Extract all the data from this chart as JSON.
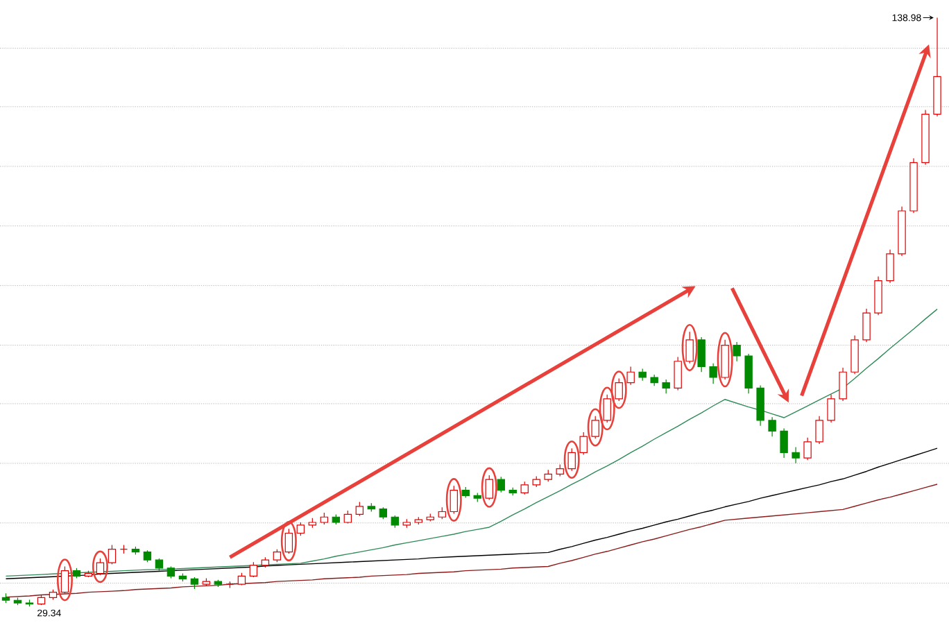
{
  "chart_data": {
    "type": "candlestick",
    "categories": [
      null,
      null,
      null,
      null,
      null,
      null,
      null,
      null,
      null,
      null,
      null,
      null,
      null,
      null,
      null,
      null,
      null,
      null,
      null,
      null,
      null,
      null,
      null,
      null,
      null,
      null,
      null,
      null,
      null,
      null,
      null,
      null,
      null,
      null,
      null,
      null,
      null,
      null,
      null,
      null,
      null,
      null,
      null,
      null,
      null,
      null,
      null,
      null,
      null,
      null,
      null,
      null,
      null,
      null,
      null,
      null,
      null,
      null,
      null,
      null,
      null,
      null,
      null,
      null,
      null,
      null,
      null,
      null,
      null,
      null,
      null,
      null,
      null,
      null,
      null,
      null,
      null,
      null,
      null,
      null
    ],
    "ohlc": [
      [
        31,
        31.8,
        30,
        30.5
      ],
      [
        30.5,
        31,
        29.6,
        30
      ],
      [
        30,
        30.6,
        29.34,
        29.8
      ],
      [
        29.8,
        31.5,
        29.6,
        31
      ],
      [
        31,
        32.5,
        30.6,
        32
      ],
      [
        32,
        36.8,
        31.8,
        36
      ],
      [
        36,
        36.5,
        34.6,
        35
      ],
      [
        35,
        36,
        34.8,
        35.5
      ],
      [
        35.5,
        38.3,
        35.2,
        37.5
      ],
      [
        37.5,
        40.8,
        37.2,
        40
      ],
      [
        40,
        40.8,
        39.2,
        40
      ],
      [
        40,
        40.5,
        39,
        39.5
      ],
      [
        39.5,
        39.8,
        37.6,
        38
      ],
      [
        38,
        38.3,
        36,
        36.5
      ],
      [
        36.5,
        36.8,
        34.6,
        35
      ],
      [
        35,
        35.5,
        34,
        34.5
      ],
      [
        34.5,
        34.8,
        32.6,
        33.5
      ],
      [
        33.5,
        34.6,
        33.2,
        34
      ],
      [
        34,
        34.3,
        33,
        33.5
      ],
      [
        33.5,
        34,
        32.8,
        33.5
      ],
      [
        33.5,
        35.6,
        33.3,
        35
      ],
      [
        35,
        37.6,
        34.8,
        37
      ],
      [
        37,
        38.5,
        36.6,
        38
      ],
      [
        38,
        40,
        37.6,
        39.5
      ],
      [
        39.5,
        43.8,
        39.2,
        43
      ],
      [
        43,
        45,
        42.5,
        44.5
      ],
      [
        44.5,
        45.8,
        44,
        45
      ],
      [
        45,
        46.8,
        44.6,
        46
      ],
      [
        46,
        46.5,
        44.6,
        45
      ],
      [
        45,
        47.2,
        44.8,
        46.5
      ],
      [
        46.5,
        48.8,
        46.2,
        48
      ],
      [
        48,
        48.6,
        47,
        47.5
      ],
      [
        47.5,
        47.8,
        45.6,
        46
      ],
      [
        46,
        46.3,
        44,
        44.5
      ],
      [
        44.5,
        45.6,
        44,
        45
      ],
      [
        45,
        46,
        44.6,
        45.5
      ],
      [
        45.5,
        46.6,
        45.2,
        46
      ],
      [
        46,
        47.8,
        45.6,
        47
      ],
      [
        47,
        51.8,
        46.6,
        51
      ],
      [
        51,
        51.6,
        49.6,
        50
      ],
      [
        50,
        50.5,
        48.8,
        49.5
      ],
      [
        49.5,
        53.8,
        49.2,
        53
      ],
      [
        53,
        53.5,
        50.6,
        51
      ],
      [
        51,
        51.5,
        50,
        50.5
      ],
      [
        50.5,
        52.6,
        50.2,
        52
      ],
      [
        52,
        53.6,
        51.6,
        53
      ],
      [
        53,
        54.8,
        52.6,
        54
      ],
      [
        54,
        55.8,
        53.6,
        55
      ],
      [
        55,
        58.8,
        54.6,
        58
      ],
      [
        58,
        61.8,
        57.6,
        61
      ],
      [
        61,
        64.8,
        60.6,
        64
      ],
      [
        64,
        68.8,
        63.6,
        68
      ],
      [
        68,
        71.8,
        67.6,
        71
      ],
      [
        71,
        74,
        70.6,
        73
      ],
      [
        73,
        73.6,
        71.4,
        72
      ],
      [
        72,
        72.5,
        70.4,
        71
      ],
      [
        71,
        71.6,
        69,
        70
      ],
      [
        70,
        75.8,
        69.6,
        75
      ],
      [
        75,
        80.5,
        74.6,
        79
      ],
      [
        79,
        79.5,
        73,
        74
      ],
      [
        74,
        74.6,
        70.8,
        72
      ],
      [
        72,
        79,
        71.6,
        78
      ],
      [
        78,
        78.6,
        75,
        76
      ],
      [
        76,
        76.4,
        69,
        70
      ],
      [
        70,
        70.5,
        63,
        64
      ],
      [
        64,
        64.6,
        61,
        62
      ],
      [
        62,
        62.5,
        57,
        58
      ],
      [
        58,
        59,
        56,
        57
      ],
      [
        57,
        60.8,
        56.6,
        60
      ],
      [
        60,
        64.8,
        59.6,
        64
      ],
      [
        64,
        68.8,
        63.6,
        68
      ],
      [
        68,
        73.8,
        67.6,
        73
      ],
      [
        73,
        79.8,
        72.6,
        79
      ],
      [
        79,
        84.8,
        78.6,
        84
      ],
      [
        84,
        90.8,
        83.6,
        90
      ],
      [
        90,
        95.8,
        89.6,
        95
      ],
      [
        95,
        103.8,
        94.6,
        103
      ],
      [
        103,
        112.8,
        102.6,
        112
      ],
      [
        112,
        121.8,
        111.6,
        121
      ],
      [
        121,
        138.98,
        120.6,
        128
      ]
    ],
    "series": [
      {
        "type": "line",
        "color": "#8b1a1a",
        "values": [
          31.1,
          31.2,
          31.3,
          31.5,
          31.6,
          31.7,
          31.8,
          32.0,
          32.1,
          32.2,
          32.3,
          32.5,
          32.6,
          32.7,
          32.8,
          33.0,
          33.1,
          33.2,
          33.3,
          33.5,
          33.6,
          33.7,
          33.8,
          34.0,
          34.1,
          34.2,
          34.3,
          34.5,
          34.6,
          34.7,
          34.8,
          35.0,
          35.1,
          35.2,
          35.3,
          35.5,
          35.6,
          35.7,
          35.8,
          36.0,
          36.1,
          36.2,
          36.3,
          36.5,
          36.6,
          36.7,
          36.8,
          37.4,
          37.9,
          38.5,
          39.1,
          39.6,
          40.2,
          40.8,
          41.4,
          41.9,
          42.5,
          43.1,
          43.7,
          44.2,
          44.8,
          45.4,
          45.6,
          45.8,
          46.0,
          46.2,
          46.4,
          46.6,
          46.8,
          47.0,
          47.2,
          47.4,
          48.0,
          48.6,
          49.2,
          49.7,
          50.3,
          50.9,
          51.5,
          52.1
        ]
      },
      {
        "type": "line",
        "color": "#000000",
        "values": [
          34.5,
          34.6,
          34.7,
          34.8,
          34.9,
          35.0,
          35.1,
          35.2,
          35.4,
          35.5,
          35.6,
          35.7,
          35.8,
          35.9,
          36.0,
          36.1,
          36.2,
          36.3,
          36.4,
          36.5,
          36.6,
          36.7,
          36.9,
          37.0,
          37.1,
          37.2,
          37.3,
          37.4,
          37.5,
          37.6,
          37.7,
          37.8,
          37.9,
          38.0,
          38.1,
          38.2,
          38.4,
          38.5,
          38.6,
          38.7,
          38.8,
          38.9,
          39.0,
          39.1,
          39.2,
          39.3,
          39.4,
          40.0,
          40.5,
          41.1,
          41.7,
          42.2,
          42.8,
          43.4,
          43.9,
          44.5,
          45.1,
          45.6,
          46.2,
          46.8,
          47.3,
          47.9,
          48.4,
          48.9,
          49.5,
          50.0,
          50.5,
          51.0,
          51.5,
          52.0,
          52.6,
          53.1,
          53.8,
          54.5,
          55.3,
          56.0,
          56.7,
          57.4,
          58.1,
          58.8
        ]
      },
      {
        "type": "line",
        "color": "#2e8b57",
        "values": [
          35.0,
          35.1,
          35.2,
          35.3,
          35.4,
          35.5,
          35.6,
          35.7,
          35.8,
          35.9,
          36.0,
          36.1,
          36.2,
          36.2,
          36.3,
          36.4,
          36.5,
          36.6,
          36.7,
          36.8,
          36.9,
          37.0,
          37.1,
          37.2,
          37.3,
          37.4,
          37.8,
          38.2,
          38.7,
          39.1,
          39.5,
          39.9,
          40.3,
          40.8,
          41.2,
          41.6,
          42.0,
          42.4,
          42.8,
          43.3,
          43.7,
          44.1,
          45.2,
          46.4,
          47.5,
          48.7,
          49.8,
          50.9,
          52.1,
          53.2,
          54.4,
          55.5,
          56.7,
          58.0,
          59.2,
          60.5,
          61.7,
          62.9,
          64.2,
          65.4,
          66.7,
          67.9,
          67.2,
          66.5,
          65.9,
          65.2,
          64.5,
          65.6,
          66.7,
          67.8,
          68.9,
          70.0,
          71.8,
          73.7,
          75.5,
          77.4,
          79.2,
          81.0,
          82.9,
          84.7
        ]
      }
    ],
    "yticks": [
      {
        "value": 33.7,
        "label": null
      },
      {
        "value": 44.9,
        "label": null
      },
      {
        "value": 56.0,
        "label": null
      },
      {
        "value": 67.1,
        "label": null
      },
      {
        "value": 78.0,
        "label": null
      },
      {
        "value": 89.1,
        "label": null
      },
      {
        "value": 100.2,
        "label": null
      },
      {
        "value": 111.3,
        "label": null
      },
      {
        "value": 122.4,
        "label": null
      },
      {
        "value": 133.3,
        "label": null
      }
    ],
    "grid": "y",
    "annotations": [
      "138.98",
      "29.34"
    ]
  }
}
